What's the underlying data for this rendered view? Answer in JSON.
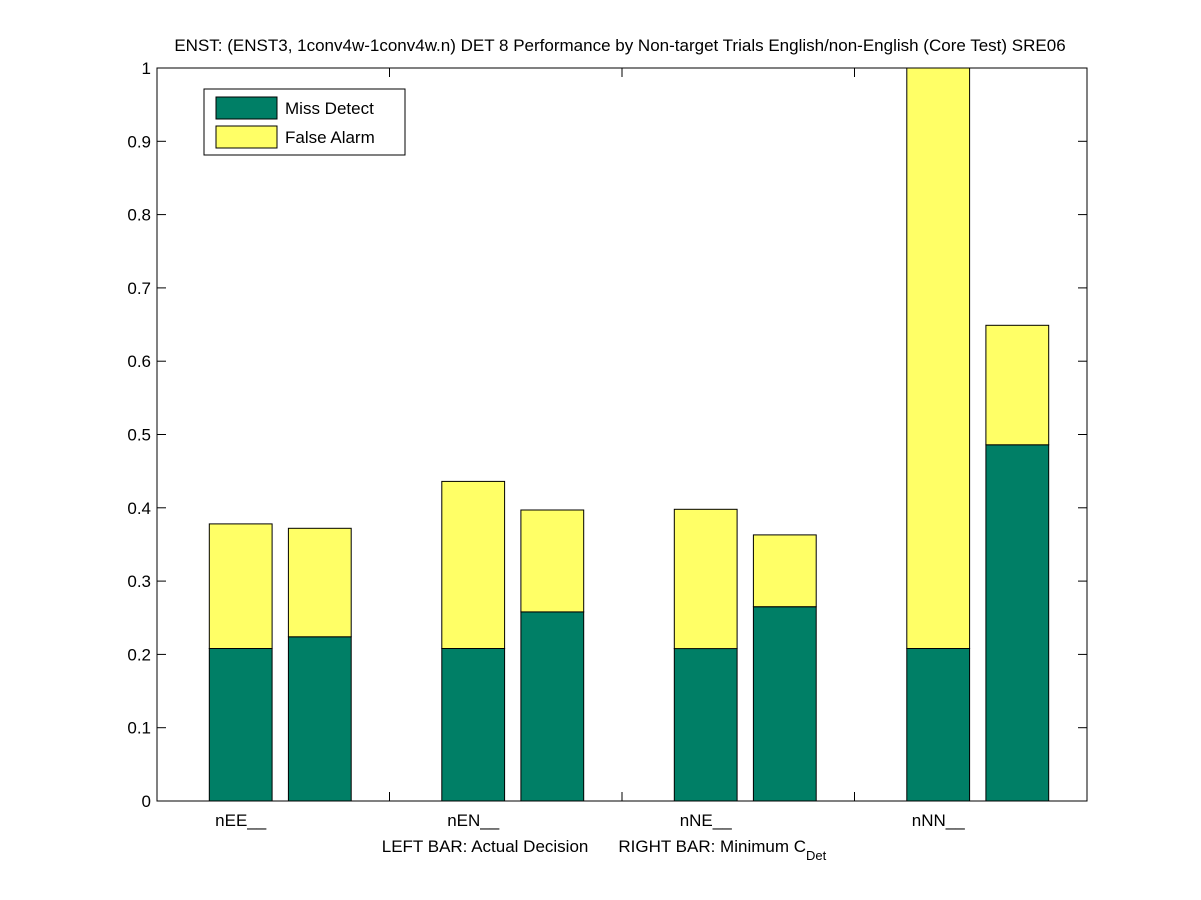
{
  "colors": {
    "miss": "#007f66",
    "false_alarm": "#ffff66",
    "axis": "#000000",
    "background": "#ffffff"
  },
  "chart_data": {
    "type": "bar",
    "stacked": true,
    "title": "ENST: (ENST3, 1conv4w-1conv4w.n) DET 8 Performance by Non-target Trials English/non-English (Core Test) SRE06",
    "xlabel": {
      "left_text": "LEFT BAR: Actual Decision",
      "right_text": "RIGHT BAR: Minimum C",
      "right_subscript": "Det"
    },
    "categories": [
      "nEE__",
      "nEN__",
      "nNE__",
      "nNN__"
    ],
    "bars_per_category": [
      "Actual Decision",
      "Minimum C_Det"
    ],
    "series": [
      {
        "name": "Miss Detect",
        "color": "#007f66",
        "values": [
          [
            0.208,
            0.224
          ],
          [
            0.208,
            0.258
          ],
          [
            0.208,
            0.265
          ],
          [
            0.208,
            0.486
          ]
        ]
      },
      {
        "name": "False Alarm",
        "color": "#ffff66",
        "values": [
          [
            0.17,
            0.148
          ],
          [
            0.228,
            0.139
          ],
          [
            0.19,
            0.098
          ],
          [
            0.792,
            0.163
          ]
        ]
      }
    ],
    "ylim": [
      0,
      1
    ],
    "yticks": [
      "0",
      "0.1",
      "0.2",
      "0.3",
      "0.4",
      "0.5",
      "0.6",
      "0.7",
      "0.8",
      "0.9",
      "1"
    ],
    "grid": false,
    "legend_position": "top-left"
  }
}
